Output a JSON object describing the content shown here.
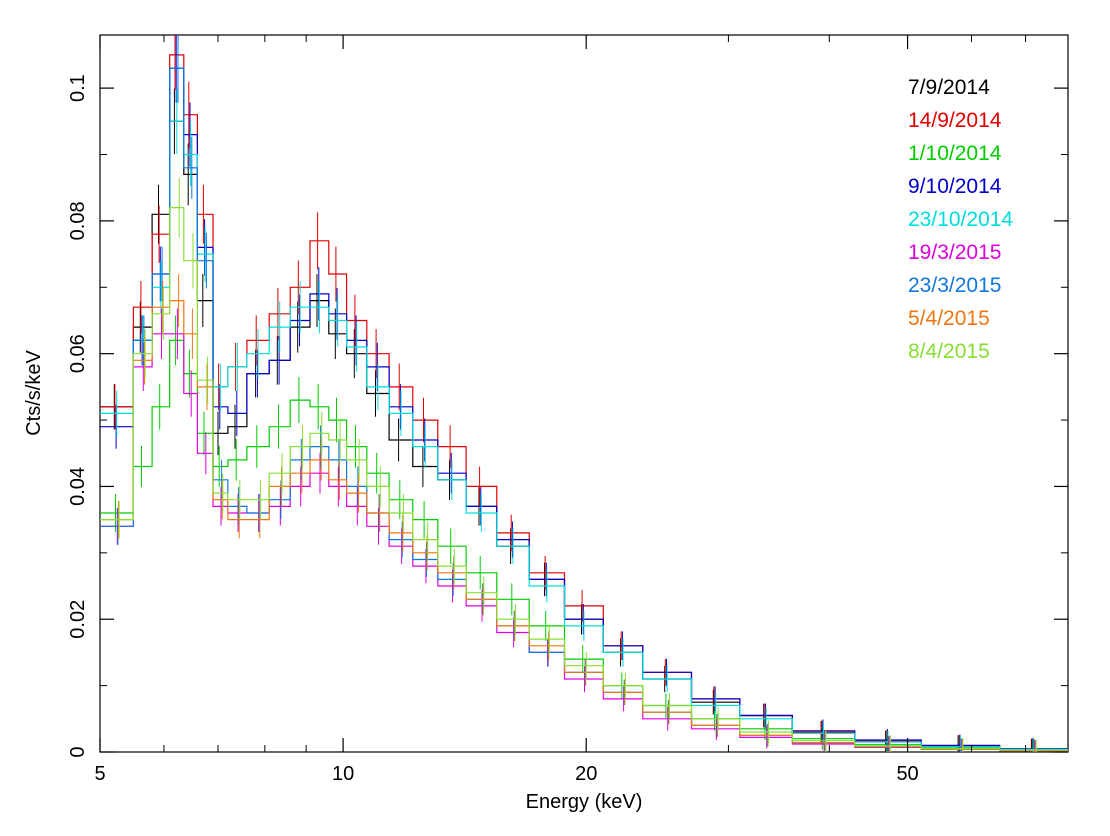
{
  "chart_data": {
    "type": "line",
    "step": true,
    "xscale": "log",
    "xlim": [
      5,
      79
    ],
    "ylim": [
      0,
      0.108
    ],
    "xlabel": "Energy (keV)",
    "ylabel": "Cts/s/keV",
    "xticks": [
      {
        "value": 5,
        "label": "5"
      },
      {
        "value": 10,
        "label": "10"
      },
      {
        "value": 20,
        "label": "20"
      },
      {
        "value": 50,
        "label": "50"
      }
    ],
    "yticks": [
      {
        "value": 0,
        "label": "0"
      },
      {
        "value": 0.02,
        "label": "0.02"
      },
      {
        "value": 0.04,
        "label": "0.04"
      },
      {
        "value": 0.06,
        "label": "0.06"
      },
      {
        "value": 0.08,
        "label": "0.08"
      },
      {
        "value": 0.1,
        "label": "0.1"
      }
    ],
    "legend_position": "top-right",
    "edges": [
      5,
      5.5,
      5.8,
      6.1,
      6.35,
      6.6,
      6.9,
      7.2,
      7.6,
      8.1,
      8.6,
      9.1,
      9.6,
      10.1,
      10.7,
      11.4,
      12.2,
      13.1,
      14.2,
      15.5,
      17,
      18.8,
      21,
      23.5,
      27,
      31,
      36,
      43,
      52,
      65,
      79
    ],
    "series": [
      {
        "name": "7/9/2014",
        "color": "#000000",
        "values": [
          0.052,
          0.064,
          0.081,
          0.095,
          0.087,
          0.068,
          0.048,
          0.049,
          0.057,
          0.059,
          0.064,
          0.068,
          0.063,
          0.06,
          0.054,
          0.047,
          0.043,
          0.041,
          0.037,
          0.031,
          0.026,
          0.02,
          0.015,
          0.011,
          0.0075,
          0.0055,
          0.003,
          0.0016,
          0.0009,
          0.0004
        ]
      },
      {
        "name": "14/9/2014",
        "color": "#e00000",
        "values": [
          0.052,
          0.067,
          0.078,
          0.105,
          0.096,
          0.081,
          0.055,
          0.058,
          0.062,
          0.066,
          0.07,
          0.077,
          0.072,
          0.065,
          0.06,
          0.055,
          0.05,
          0.046,
          0.04,
          0.033,
          0.027,
          0.022,
          0.016,
          0.012,
          0.008,
          0.0055,
          0.003,
          0.0016,
          0.0009,
          0.0004
        ]
      },
      {
        "name": "1/10/2014",
        "color": "#00cc00",
        "values": [
          0.036,
          0.043,
          0.052,
          0.062,
          0.057,
          0.048,
          0.043,
          0.044,
          0.046,
          0.049,
          0.053,
          0.052,
          0.05,
          0.046,
          0.042,
          0.038,
          0.035,
          0.031,
          0.027,
          0.023,
          0.019,
          0.014,
          0.01,
          0.007,
          0.005,
          0.0035,
          0.002,
          0.0011,
          0.0006,
          0.0003
        ]
      },
      {
        "name": "9/10/2014",
        "color": "#0000cc",
        "values": [
          0.049,
          0.062,
          0.072,
          0.103,
          0.093,
          0.076,
          0.052,
          0.051,
          0.057,
          0.059,
          0.065,
          0.069,
          0.066,
          0.062,
          0.058,
          0.052,
          0.047,
          0.042,
          0.037,
          0.032,
          0.026,
          0.02,
          0.016,
          0.012,
          0.008,
          0.0055,
          0.0032,
          0.0018,
          0.001,
          0.0005
        ]
      },
      {
        "name": "23/10/2014",
        "color": "#00dddd",
        "values": [
          0.051,
          0.062,
          0.07,
          0.095,
          0.09,
          0.075,
          0.055,
          0.058,
          0.06,
          0.064,
          0.067,
          0.067,
          0.065,
          0.061,
          0.055,
          0.051,
          0.046,
          0.041,
          0.036,
          0.031,
          0.025,
          0.019,
          0.015,
          0.011,
          0.007,
          0.005,
          0.0028,
          0.0015,
          0.0008,
          0.0004
        ]
      },
      {
        "name": "19/3/2015",
        "color": "#dd00dd",
        "values": [
          0.034,
          0.058,
          0.063,
          0.063,
          0.054,
          0.045,
          0.037,
          0.036,
          0.036,
          0.037,
          0.04,
          0.042,
          0.04,
          0.037,
          0.034,
          0.031,
          0.028,
          0.025,
          0.022,
          0.018,
          0.015,
          0.011,
          0.008,
          0.005,
          0.0035,
          0.0022,
          0.0012,
          0.0007,
          0.0004,
          0.0002
        ]
      },
      {
        "name": "23/3/2015",
        "color": "#1177dd",
        "values": [
          0.034,
          0.062,
          0.072,
          0.103,
          0.088,
          0.074,
          0.041,
          0.037,
          0.036,
          0.038,
          0.044,
          0.046,
          0.044,
          0.04,
          0.036,
          0.032,
          0.029,
          0.026,
          0.023,
          0.019,
          0.015,
          0.012,
          0.009,
          0.006,
          0.004,
          0.0025,
          0.0014,
          0.0008,
          0.0004,
          0.0002
        ]
      },
      {
        "name": "5/4/2015",
        "color": "#ee7711",
        "values": [
          0.035,
          0.059,
          0.067,
          0.068,
          0.063,
          0.055,
          0.038,
          0.035,
          0.035,
          0.04,
          0.042,
          0.044,
          0.041,
          0.039,
          0.036,
          0.033,
          0.03,
          0.027,
          0.023,
          0.019,
          0.016,
          0.012,
          0.009,
          0.006,
          0.004,
          0.0025,
          0.0014,
          0.0008,
          0.0004,
          0.0002
        ]
      },
      {
        "name": "8/4/2015",
        "color": "#88dd33",
        "values": [
          0.035,
          0.06,
          0.066,
          0.082,
          0.074,
          0.056,
          0.039,
          0.038,
          0.038,
          0.042,
          0.046,
          0.048,
          0.047,
          0.044,
          0.04,
          0.036,
          0.032,
          0.028,
          0.024,
          0.02,
          0.017,
          0.013,
          0.01,
          0.007,
          0.005,
          0.003,
          0.0017,
          0.0009,
          0.0005,
          0.0003
        ]
      }
    ]
  }
}
